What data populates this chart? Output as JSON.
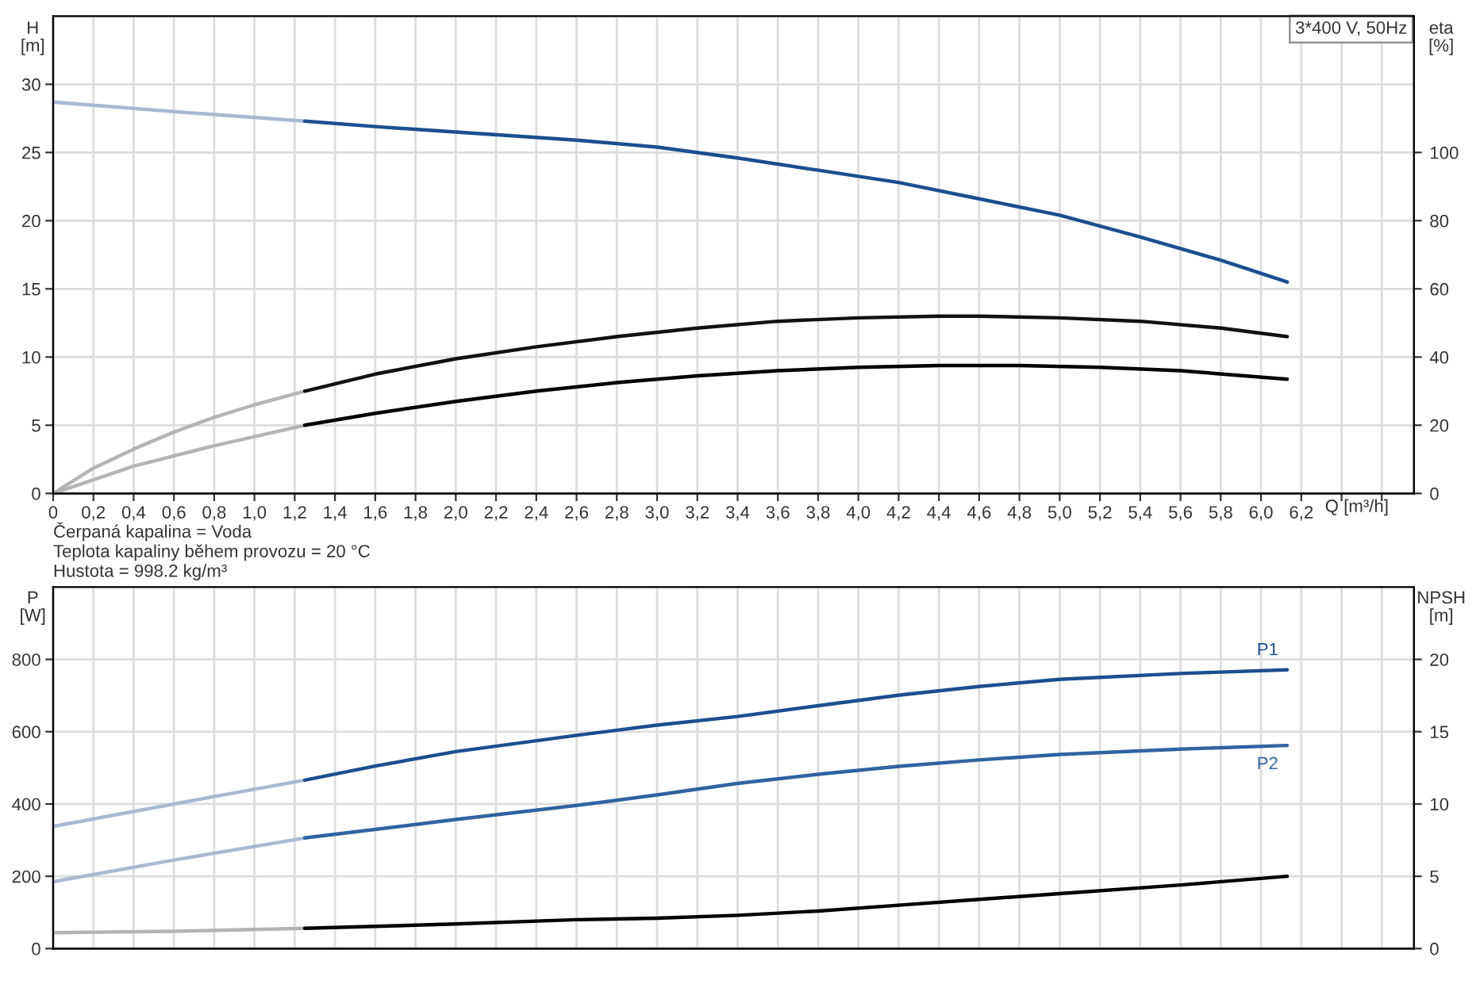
{
  "chart_data": [
    {
      "type": "line",
      "xlabel": "Q [m³/h]",
      "ylabel": "H\n[m]",
      "y2label": "eta\n[%]",
      "xlim": [
        0,
        6.76
      ],
      "ylim": [
        0,
        35
      ],
      "y2lim": [
        0,
        140
      ],
      "xticks": [
        0,
        {
          "value": 0.2,
          "label": "0,2"
        },
        {
          "value": 0.4,
          "label": "0,4"
        },
        {
          "value": 0.6,
          "label": "0,6"
        },
        {
          "value": 0.8,
          "label": "0,8"
        },
        {
          "value": 1.0,
          "label": "1,0"
        },
        {
          "value": 1.2,
          "label": "1,2"
        },
        {
          "value": 1.4,
          "label": "1,4"
        },
        {
          "value": 1.6,
          "label": "1,6"
        },
        {
          "value": 1.8,
          "label": "1,8"
        },
        {
          "value": 2.0,
          "label": "2,0"
        },
        {
          "value": 2.2,
          "label": "2,2"
        },
        {
          "value": 2.4,
          "label": "2,4"
        },
        {
          "value": 2.6,
          "label": "2,6"
        },
        {
          "value": 2.8,
          "label": "2,8"
        },
        {
          "value": 3.0,
          "label": "3,0"
        },
        {
          "value": 3.2,
          "label": "3,2"
        },
        {
          "value": 3.4,
          "label": "3,4"
        },
        {
          "value": 3.6,
          "label": "3,6"
        },
        {
          "value": 3.8,
          "label": "3,8"
        },
        {
          "value": 4.0,
          "label": "4,0"
        },
        {
          "value": 4.2,
          "label": "4,2"
        },
        {
          "value": 4.4,
          "label": "4,4"
        },
        {
          "value": 4.6,
          "label": "4,6"
        },
        {
          "value": 4.8,
          "label": "4,8"
        },
        {
          "value": 5.0,
          "label": "5,0"
        },
        {
          "value": 5.2,
          "label": "5,2"
        },
        {
          "value": 5.4,
          "label": "5,4"
        },
        {
          "value": 5.6,
          "label": "5,6"
        },
        {
          "value": 5.8,
          "label": "5,8"
        },
        {
          "value": 6.0,
          "label": "6,0"
        },
        {
          "value": 6.2,
          "label": "6,2"
        },
        {
          "value": 6.4,
          "label": null
        },
        {
          "value": 6.6,
          "label": null
        }
      ],
      "yticks": [
        0,
        5,
        10,
        15,
        20,
        25,
        30
      ],
      "y2ticks": [
        0,
        20,
        40,
        60,
        80,
        100
      ],
      "grid": true,
      "legend": false,
      "series": [
        {
          "color": "#a9b9d0",
          "x": [
            0,
            0.6,
            1.25
          ],
          "values": [
            28.7,
            28.0,
            27.3
          ]
        },
        {
          "color": "#1a4f8f",
          "x": [
            1.25,
            1.6,
            2.0,
            2.6,
            3.0,
            3.4,
            3.8,
            4.2,
            4.6,
            5.0,
            5.4,
            5.8,
            6.13
          ],
          "values": [
            27.3,
            26.9,
            26.5,
            25.9,
            25.4,
            24.6,
            23.7,
            22.8,
            21.6,
            20.4,
            18.8,
            17.1,
            15.5
          ]
        },
        {
          "color": "#b4b4b4",
          "axis": "y2",
          "x": [
            0,
            0.2,
            0.4,
            0.6,
            0.8,
            1.0,
            1.25
          ],
          "values": [
            0,
            7.4,
            13,
            18,
            22.3,
            26,
            30
          ]
        },
        {
          "color": "#111111",
          "axis": "y2",
          "x": [
            1.25,
            1.6,
            2.0,
            2.4,
            2.8,
            3.2,
            3.6,
            4.0,
            4.4,
            4.6,
            5.0,
            5.4,
            5.8,
            6.13
          ],
          "values": [
            30,
            35,
            39.5,
            43,
            46,
            48.5,
            50.5,
            51.5,
            52,
            52,
            51.5,
            50.5,
            48.5,
            46
          ]
        },
        {
          "color": "#b4b4b4",
          "axis": "y2",
          "x": [
            0,
            0.4,
            0.8,
            1.25
          ],
          "values": [
            0,
            8,
            14,
            20
          ]
        },
        {
          "color": "#000000",
          "axis": "y2",
          "x": [
            1.25,
            1.6,
            2.0,
            2.4,
            2.8,
            3.2,
            3.6,
            4.0,
            4.4,
            4.8,
            5.2,
            5.6,
            6.13
          ],
          "values": [
            20,
            23.5,
            27,
            30,
            32.5,
            34.5,
            36,
            37,
            37.5,
            37.5,
            37,
            36,
            33.5
          ]
        }
      ],
      "annotations": [
        "3*400 V, 50Hz",
        "Čerpaná kapalina = Voda\nTeplota kapaliny během provozu = 20 °C\nHustota = 998.2 kg/m³"
      ]
    },
    {
      "type": "line",
      "ylabel": "P\n[W]",
      "y2label": "NPSH\n[m]",
      "xlim": [
        0,
        6.76
      ],
      "ylim": [
        0,
        1000
      ],
      "y2lim": [
        0,
        25
      ],
      "xticks": [
        0,
        0.2,
        0.4,
        0.6,
        0.8,
        1.0,
        1.2,
        1.4,
        1.6,
        1.8,
        2.0,
        2.2,
        2.4,
        2.6,
        2.8,
        3.0,
        3.2,
        3.4,
        3.6,
        3.8,
        4.0,
        4.2,
        4.4,
        4.6,
        4.8,
        5.0,
        5.2,
        5.4,
        5.6,
        5.8,
        6.0,
        6.2,
        6.4,
        6.6
      ],
      "yticks": [
        0,
        200,
        400,
        600,
        800
      ],
      "y2ticks": [
        0,
        5,
        10,
        15,
        20
      ],
      "grid": true,
      "legend": false,
      "tick_labels": "y",
      "series": [
        {
          "color": "#a9b9d0",
          "x": [
            0,
            0.6,
            1.25
          ],
          "values": [
            338,
            400,
            466
          ]
        },
        {
          "name": "P1",
          "color": "#1a4f8f",
          "x": [
            1.25,
            1.6,
            2.0,
            2.6,
            3.0,
            3.4,
            3.8,
            4.2,
            4.6,
            5.0,
            5.6,
            6.13
          ],
          "values": [
            466,
            505,
            545,
            590,
            618,
            642,
            672,
            701,
            725,
            745,
            761,
            771
          ]
        },
        {
          "color": "#a9b9d0",
          "x": [
            0,
            0.6,
            1.25
          ],
          "values": [
            185,
            245,
            306
          ]
        },
        {
          "name": "P2",
          "color": "#2e64a0",
          "x": [
            1.25,
            2.0,
            2.6,
            3.0,
            3.4,
            3.8,
            4.2,
            4.6,
            5.0,
            5.6,
            6.13
          ],
          "values": [
            306,
            357,
            396,
            425,
            457,
            482,
            504,
            522,
            537,
            552,
            562
          ]
        },
        {
          "color": "#b4b4b4",
          "axis": "y2",
          "x": [
            0,
            0.6,
            1.25
          ],
          "values": [
            1.1,
            1.2,
            1.4
          ]
        },
        {
          "color": "#000000",
          "axis": "y2",
          "x": [
            1.25,
            2.0,
            2.6,
            3.0,
            3.4,
            3.8,
            4.2,
            4.6,
            5.0,
            5.6,
            6.13
          ],
          "values": [
            1.4,
            1.7,
            2.0,
            2.1,
            2.3,
            2.6,
            3.0,
            3.4,
            3.8,
            4.4,
            5.0
          ]
        }
      ]
    }
  ]
}
